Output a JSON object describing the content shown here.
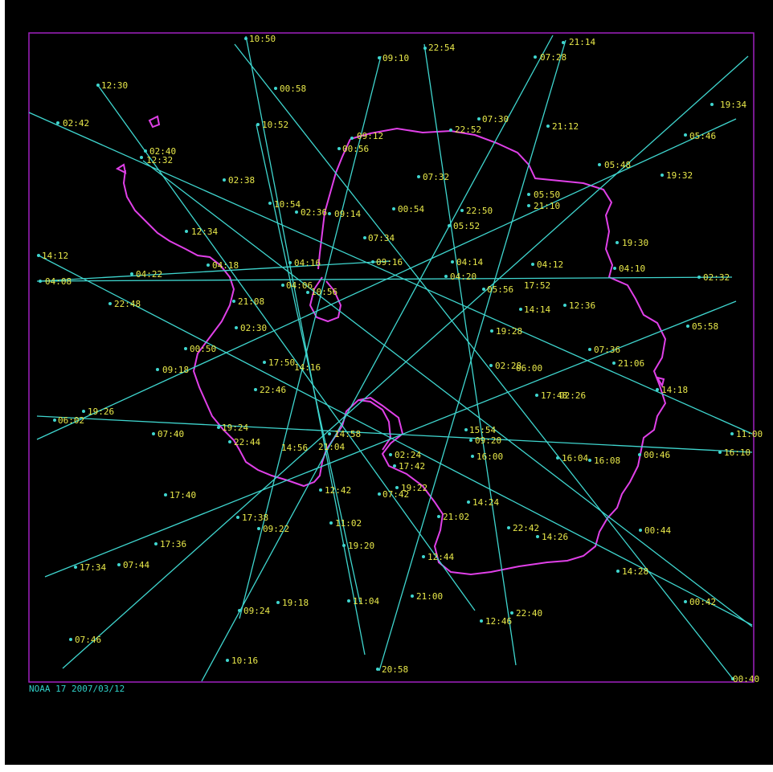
{
  "caption": "NOAA 17 2007/03/12",
  "colors": {
    "background": "#000000",
    "frame": "#a020c0",
    "coastline": "#e040e8",
    "tracks": "#3fd6cf",
    "labels": "#e8e84a",
    "caption": "#2fd0c8"
  },
  "time_labels": [
    "10:50",
    "22:54",
    "21:14",
    "09:10",
    "07:28",
    "12:30",
    "00:58",
    "19:34",
    "02:42",
    "10:52",
    "07:30",
    "21:12",
    "09:12",
    "22:52",
    "05:46",
    "02:40",
    "00:56",
    "12:32",
    "05:48",
    "19:32",
    "02:38",
    "07:32",
    "05:50",
    "21:10",
    "10:54",
    "02:36",
    "09:14",
    "00:54",
    "22:50",
    "05:52",
    "12:34",
    "07:34",
    "19:30",
    "14:12",
    "04:18",
    "04:16",
    "09:16",
    "04:14",
    "04:12",
    "04:10",
    "04:08",
    "04:22",
    "04:20",
    "02:32",
    "04:06",
    "10:56",
    "05:56",
    "17:52",
    "22:48",
    "21:08",
    "14:14",
    "12:36",
    "02:30",
    "19:28",
    "05:58",
    "00:50",
    "17:50",
    "14:16",
    "07:36",
    "09:18",
    "02:28",
    "06:00",
    "21:06",
    "22:46",
    "17:48",
    "14:18",
    "19:26",
    "02:26",
    "06:02",
    "19:24",
    "15:54",
    "07:40",
    "22:44",
    "14:56",
    "14:58",
    "09:20",
    "11:00",
    "21:04",
    "02:24",
    "16:00",
    "16:04",
    "16:08",
    "00:46",
    "16:10",
    "17:42",
    "12:42",
    "07:42",
    "17:40",
    "19:22",
    "14:24",
    "11:02",
    "21:02",
    "17:38",
    "09:22",
    "22:42",
    "14:26",
    "17:36",
    "19:20",
    "00:44",
    "17:34",
    "07:44",
    "12:44",
    "14:28",
    "21:00",
    "19:18",
    "11:04",
    "09:24",
    "00:42",
    "12:46",
    "22:40",
    "07:46",
    "10:16",
    "20:58",
    "00:40"
  ]
}
